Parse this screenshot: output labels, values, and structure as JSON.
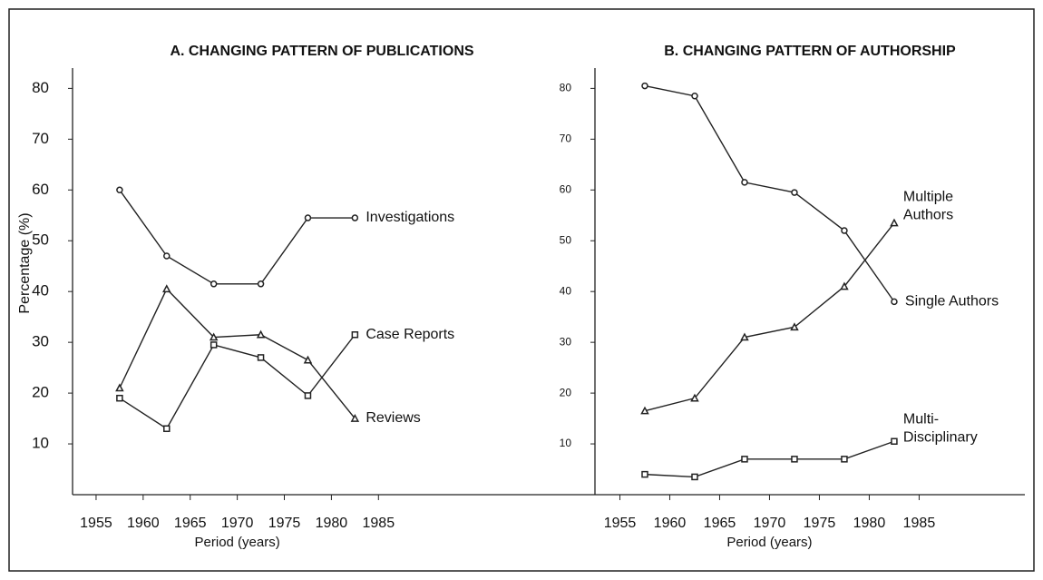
{
  "chart_data": [
    {
      "type": "line",
      "title": "A. CHANGING PATTERN OF PUBLICATIONS",
      "xlabel": "Period (years)",
      "ylabel": "Percentage (%)",
      "x": [
        1957.5,
        1962.5,
        1967.5,
        1972.5,
        1977.5,
        1982.5
      ],
      "series": [
        {
          "name": [
            "Investigations"
          ],
          "marker": "circle",
          "color": "#222222",
          "values": [
            60,
            47,
            41.5,
            41.5,
            54.5,
            54.5
          ]
        },
        {
          "name": [
            "Case Reports"
          ],
          "marker": "square",
          "color": "#222222",
          "values": [
            19,
            13,
            29.5,
            27,
            19.5,
            31.5
          ]
        },
        {
          "name": [
            "Reviews"
          ],
          "marker": "triangle",
          "color": "#222222",
          "values": [
            21,
            40.5,
            31,
            31.5,
            26.5,
            15
          ]
        }
      ],
      "xlim": [
        1952.5,
        2008
      ],
      "xticks": [
        1955,
        1960,
        1965,
        1970,
        1975,
        1980,
        1985
      ],
      "ylim": [
        0,
        84
      ],
      "yticks": [
        10,
        20,
        30,
        40,
        50,
        60,
        70,
        80
      ]
    },
    {
      "type": "line",
      "title": "B. CHANGING PATTERN OF AUTHORSHIP",
      "xlabel": "Period (years)",
      "x": [
        1957.5,
        1962.5,
        1967.5,
        1972.5,
        1977.5,
        1982.5
      ],
      "series": [
        {
          "name": [
            "Single Authors"
          ],
          "marker": "circle",
          "color": "#222222",
          "values": [
            80.5,
            78.5,
            61.5,
            59.5,
            52,
            38
          ]
        },
        {
          "name": [
            "Multiple",
            "Authors"
          ],
          "marker": "triangle",
          "color": "#222222",
          "values": [
            16.5,
            19,
            31,
            33,
            41,
            53.5
          ]
        },
        {
          "name": [
            "Multi-",
            "Disciplinary"
          ],
          "marker": "square",
          "color": "#222222",
          "values": [
            4,
            3.5,
            7,
            7,
            7,
            10.5
          ]
        }
      ],
      "xlim": [
        1952.5,
        1995.6
      ],
      "xticks": [
        1955,
        1960,
        1965,
        1970,
        1975,
        1980,
        1985
      ],
      "ylim": [
        0,
        84
      ],
      "yticks": [
        10,
        20,
        30,
        40,
        50,
        60,
        70,
        80
      ]
    }
  ]
}
